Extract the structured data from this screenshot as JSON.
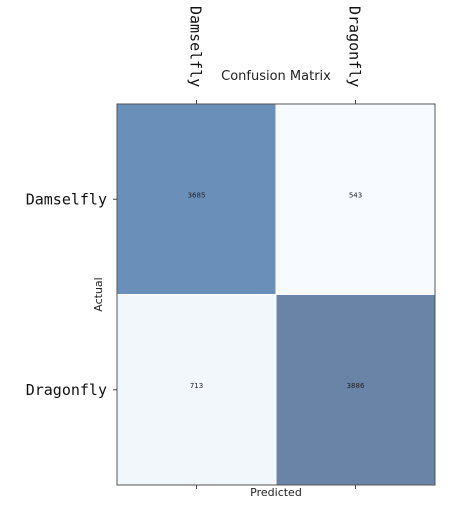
{
  "chart_data": {
    "type": "heatmap",
    "title": "Confusion Matrix",
    "xlabel": "Predicted",
    "ylabel": "Actual",
    "x_categories": [
      "Damselfly",
      "Dragonfly"
    ],
    "y_categories": [
      "Damselfly",
      "Dragonfly"
    ],
    "values": [
      [
        3685,
        543
      ],
      [
        713,
        3886
      ]
    ],
    "colormap": "Blues",
    "cell_colors": [
      [
        "#6a8fb8",
        "#f7faff"
      ],
      [
        "#f2f7fc",
        "#6a84a8"
      ]
    ],
    "x_tick_position": "top",
    "x_tick_rotation": "vertical",
    "grid": false
  }
}
